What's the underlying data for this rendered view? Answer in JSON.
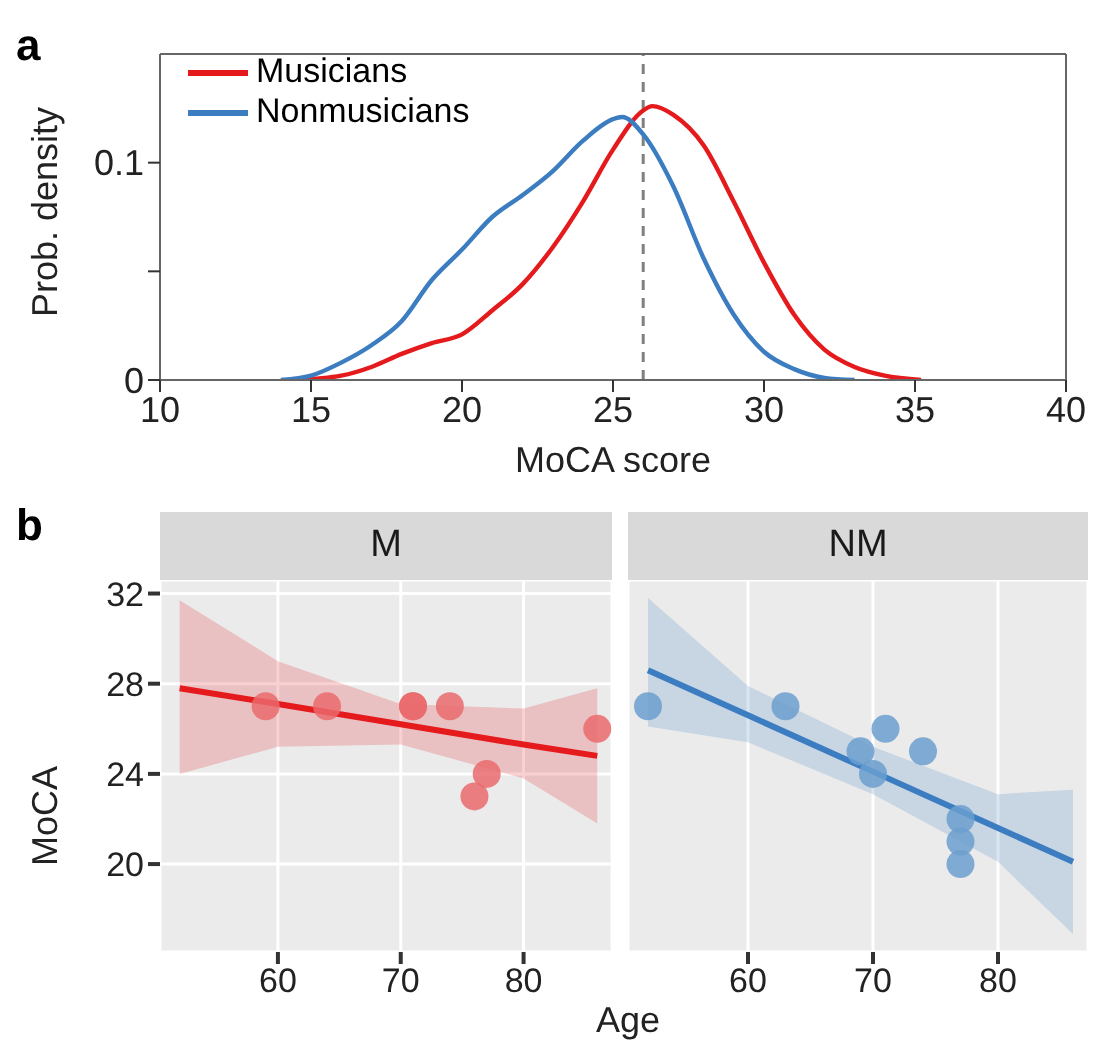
{
  "chart_data": [
    {
      "type": "line",
      "annotations": [
        "a"
      ],
      "xlabel": "MoCA score",
      "ylabel": "Prob. density",
      "xlim": [
        10,
        40
      ],
      "xticks": [
        10,
        15,
        20,
        25,
        30,
        35,
        40
      ],
      "ylim": [
        0,
        0.15
      ],
      "yticks": [
        0,
        {
          "value": 0.05,
          "label": null
        },
        0.1
      ],
      "legend": "top left",
      "grid": false,
      "ref_lines": [
        {
          "axis": "x",
          "value": 26,
          "color": "#808080",
          "line_style": "dashed"
        }
      ],
      "series": [
        {
          "name": "Musicians",
          "color": "#e41a1c",
          "x": [
            14.5,
            16,
            17,
            18,
            19,
            20,
            21,
            22,
            23,
            24,
            25,
            26,
            26.3,
            27,
            28,
            29,
            30,
            31,
            32,
            33,
            34,
            35.2
          ],
          "values": [
            0,
            0.002,
            0.006,
            0.012,
            0.017,
            0.021,
            0.032,
            0.044,
            0.061,
            0.082,
            0.106,
            0.124,
            0.126,
            0.122,
            0.108,
            0.082,
            0.054,
            0.03,
            0.014,
            0.006,
            0.002,
            0
          ]
        },
        {
          "name": "Nonmusicians",
          "color": "#3b7dc0",
          "x": [
            14,
            15,
            16,
            17,
            18,
            19,
            20,
            21,
            22,
            23,
            24,
            25,
            25.3,
            26,
            27,
            28,
            29,
            30,
            31,
            32,
            33
          ],
          "values": [
            0,
            0.002,
            0.008,
            0.016,
            0.027,
            0.046,
            0.06,
            0.075,
            0.085,
            0.096,
            0.11,
            0.12,
            0.121,
            0.113,
            0.089,
            0.056,
            0.03,
            0.013,
            0.005,
            0.001,
            0
          ]
        }
      ]
    },
    {
      "type": "scatter",
      "annotations": [
        "b"
      ],
      "title": "M",
      "ylabel": "MoCA",
      "xlim": [
        50.4,
        87.2
      ],
      "xticks": [
        60,
        70,
        80
      ],
      "ylim": [
        16.1,
        32.6
      ],
      "yticks": [
        20,
        24,
        28,
        32
      ],
      "grid": true,
      "series": [
        {
          "type": "line",
          "color": "#e41a1c",
          "x": [
            52,
            60,
            70,
            80,
            86
          ],
          "values": [
            27.8,
            27.1,
            26.2,
            25.3,
            24.8
          ],
          "lower": [
            24,
            25.2,
            25.3,
            23.8,
            21.8
          ],
          "upper": [
            31.7,
            29,
            27.1,
            26.9,
            27.8
          ]
        },
        {
          "color": "#ea6a6c",
          "x": [
            59,
            64,
            71,
            71,
            74,
            76,
            77,
            86
          ],
          "values": [
            27,
            27,
            27,
            27,
            27,
            23,
            24,
            26
          ]
        }
      ]
    },
    {
      "type": "scatter",
      "title": "NM",
      "xlabel": "Age",
      "xlim": [
        50.4,
        87.2
      ],
      "xticks": [
        60,
        70,
        80
      ],
      "ylim": [
        16.1,
        32.6
      ],
      "yticks": [
        20,
        24,
        28,
        32
      ],
      "grid": true,
      "tick_labels": "x",
      "series": [
        {
          "type": "line",
          "color": "#3b7dc0",
          "x": [
            52,
            60,
            70,
            80,
            86
          ],
          "values": [
            28.6,
            26.6,
            24.1,
            21.6,
            20.1
          ],
          "lower": [
            26.1,
            25.4,
            23.1,
            20.1,
            16.9
          ],
          "upper": [
            31.8,
            27.9,
            25.2,
            23.1,
            23.3
          ]
        },
        {
          "color": "#6b9fcf",
          "x": [
            52,
            63,
            71,
            69,
            70,
            74,
            77,
            77,
            77
          ],
          "values": [
            27,
            27,
            26,
            25,
            24,
            25,
            22,
            21,
            20
          ]
        }
      ]
    }
  ]
}
